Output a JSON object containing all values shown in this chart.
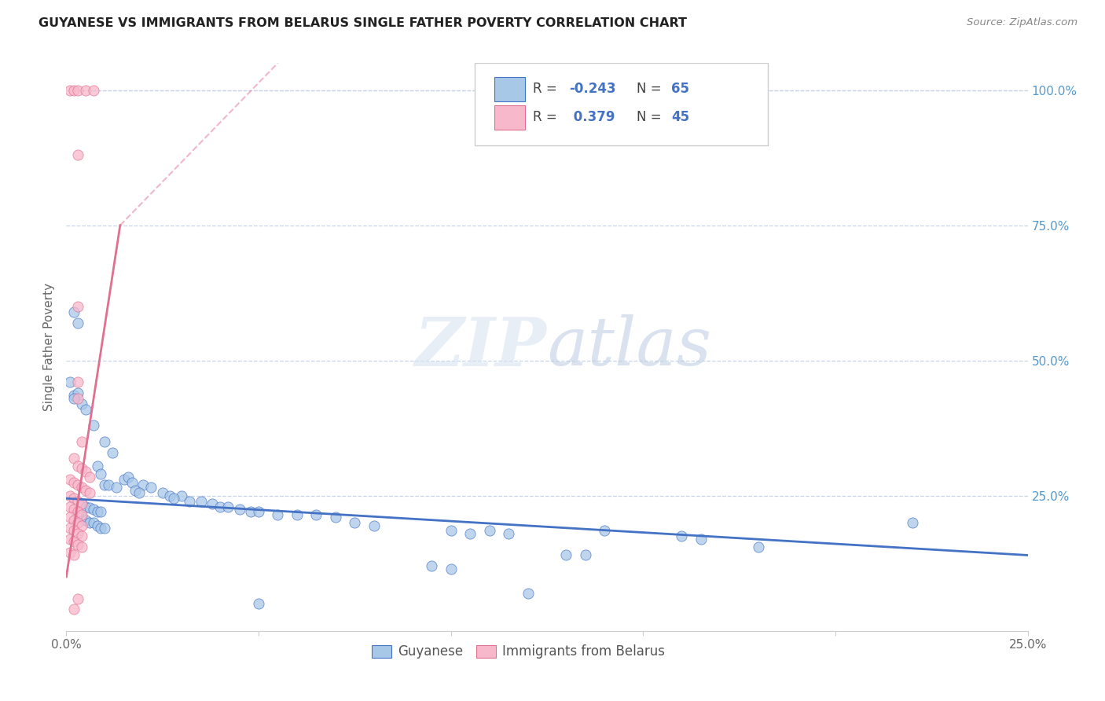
{
  "title": "GUYANESE VS IMMIGRANTS FROM BELARUS SINGLE FATHER POVERTY CORRELATION CHART",
  "source": "Source: ZipAtlas.com",
  "ylabel": "Single Father Poverty",
  "right_yticks": [
    "100.0%",
    "75.0%",
    "50.0%",
    "25.0%"
  ],
  "right_ytick_vals": [
    1.0,
    0.75,
    0.5,
    0.25
  ],
  "watermark": "ZIPatlas",
  "xlim": [
    0.0,
    0.25
  ],
  "ylim": [
    0.0,
    1.05
  ],
  "guyanese_color": "#a8c8e8",
  "guyanese_edge": "#4472c4",
  "belarus_color": "#f8b8cc",
  "belarus_edge": "#e07090",
  "guyanese_line_color": "#4472c4",
  "belarus_line_color": "#e07090",
  "guyanese_line": {
    "x0": 0.0,
    "y0": 0.245,
    "x1": 0.25,
    "y1": 0.14
  },
  "belarus_line_solid": {
    "x0": 0.0,
    "y0": 0.1,
    "x1": 0.014,
    "y1": 0.75
  },
  "belarus_line_dashed": {
    "x0": 0.014,
    "y0": 0.75,
    "x1": 0.055,
    "y1": 1.05
  },
  "background_color": "#ffffff",
  "grid_color": "#c8d4e8",
  "title_color": "#222222",
  "source_color": "#888888",
  "right_axis_color": "#5599cc",
  "guyanese_points": [
    [
      0.002,
      0.435
    ],
    [
      0.004,
      0.42
    ],
    [
      0.007,
      0.38
    ],
    [
      0.003,
      0.44
    ],
    [
      0.005,
      0.41
    ],
    [
      0.002,
      0.59
    ],
    [
      0.003,
      0.57
    ],
    [
      0.001,
      0.46
    ],
    [
      0.002,
      0.43
    ],
    [
      0.01,
      0.35
    ],
    [
      0.012,
      0.33
    ],
    [
      0.008,
      0.305
    ],
    [
      0.009,
      0.29
    ],
    [
      0.015,
      0.28
    ],
    [
      0.016,
      0.285
    ],
    [
      0.017,
      0.275
    ],
    [
      0.01,
      0.27
    ],
    [
      0.011,
      0.27
    ],
    [
      0.013,
      0.265
    ],
    [
      0.02,
      0.27
    ],
    [
      0.022,
      0.265
    ],
    [
      0.018,
      0.26
    ],
    [
      0.019,
      0.255
    ],
    [
      0.025,
      0.255
    ],
    [
      0.027,
      0.25
    ],
    [
      0.03,
      0.25
    ],
    [
      0.028,
      0.245
    ],
    [
      0.032,
      0.24
    ],
    [
      0.035,
      0.24
    ],
    [
      0.038,
      0.235
    ],
    [
      0.04,
      0.23
    ],
    [
      0.042,
      0.23
    ],
    [
      0.004,
      0.235
    ],
    [
      0.005,
      0.23
    ],
    [
      0.006,
      0.228
    ],
    [
      0.007,
      0.225
    ],
    [
      0.008,
      0.22
    ],
    [
      0.009,
      0.22
    ],
    [
      0.045,
      0.225
    ],
    [
      0.048,
      0.22
    ],
    [
      0.05,
      0.22
    ],
    [
      0.055,
      0.215
    ],
    [
      0.06,
      0.215
    ],
    [
      0.065,
      0.215
    ],
    [
      0.07,
      0.21
    ],
    [
      0.003,
      0.215
    ],
    [
      0.004,
      0.21
    ],
    [
      0.005,
      0.205
    ],
    [
      0.006,
      0.2
    ],
    [
      0.007,
      0.2
    ],
    [
      0.008,
      0.195
    ],
    [
      0.009,
      0.19
    ],
    [
      0.01,
      0.19
    ],
    [
      0.075,
      0.2
    ],
    [
      0.08,
      0.195
    ],
    [
      0.1,
      0.185
    ],
    [
      0.105,
      0.18
    ],
    [
      0.11,
      0.185
    ],
    [
      0.115,
      0.18
    ],
    [
      0.14,
      0.185
    ],
    [
      0.16,
      0.175
    ],
    [
      0.165,
      0.17
    ],
    [
      0.22,
      0.2
    ],
    [
      0.13,
      0.14
    ],
    [
      0.135,
      0.14
    ],
    [
      0.18,
      0.155
    ],
    [
      0.095,
      0.12
    ],
    [
      0.1,
      0.115
    ],
    [
      0.05,
      0.05
    ],
    [
      0.12,
      0.07
    ]
  ],
  "belarus_points": [
    [
      0.001,
      1.0
    ],
    [
      0.002,
      1.0
    ],
    [
      0.003,
      1.0
    ],
    [
      0.005,
      1.0
    ],
    [
      0.007,
      1.0
    ],
    [
      0.003,
      0.88
    ],
    [
      0.003,
      0.6
    ],
    [
      0.003,
      0.46
    ],
    [
      0.003,
      0.43
    ],
    [
      0.004,
      0.35
    ],
    [
      0.002,
      0.32
    ],
    [
      0.003,
      0.305
    ],
    [
      0.004,
      0.3
    ],
    [
      0.005,
      0.295
    ],
    [
      0.006,
      0.285
    ],
    [
      0.001,
      0.28
    ],
    [
      0.002,
      0.275
    ],
    [
      0.003,
      0.27
    ],
    [
      0.004,
      0.265
    ],
    [
      0.005,
      0.26
    ],
    [
      0.006,
      0.255
    ],
    [
      0.001,
      0.25
    ],
    [
      0.002,
      0.245
    ],
    [
      0.003,
      0.24
    ],
    [
      0.004,
      0.235
    ],
    [
      0.001,
      0.23
    ],
    [
      0.002,
      0.225
    ],
    [
      0.003,
      0.22
    ],
    [
      0.004,
      0.215
    ],
    [
      0.001,
      0.21
    ],
    [
      0.002,
      0.205
    ],
    [
      0.003,
      0.2
    ],
    [
      0.004,
      0.195
    ],
    [
      0.001,
      0.19
    ],
    [
      0.002,
      0.185
    ],
    [
      0.003,
      0.18
    ],
    [
      0.004,
      0.175
    ],
    [
      0.001,
      0.17
    ],
    [
      0.002,
      0.165
    ],
    [
      0.003,
      0.16
    ],
    [
      0.004,
      0.155
    ],
    [
      0.001,
      0.145
    ],
    [
      0.002,
      0.14
    ],
    [
      0.003,
      0.06
    ],
    [
      0.002,
      0.04
    ]
  ]
}
